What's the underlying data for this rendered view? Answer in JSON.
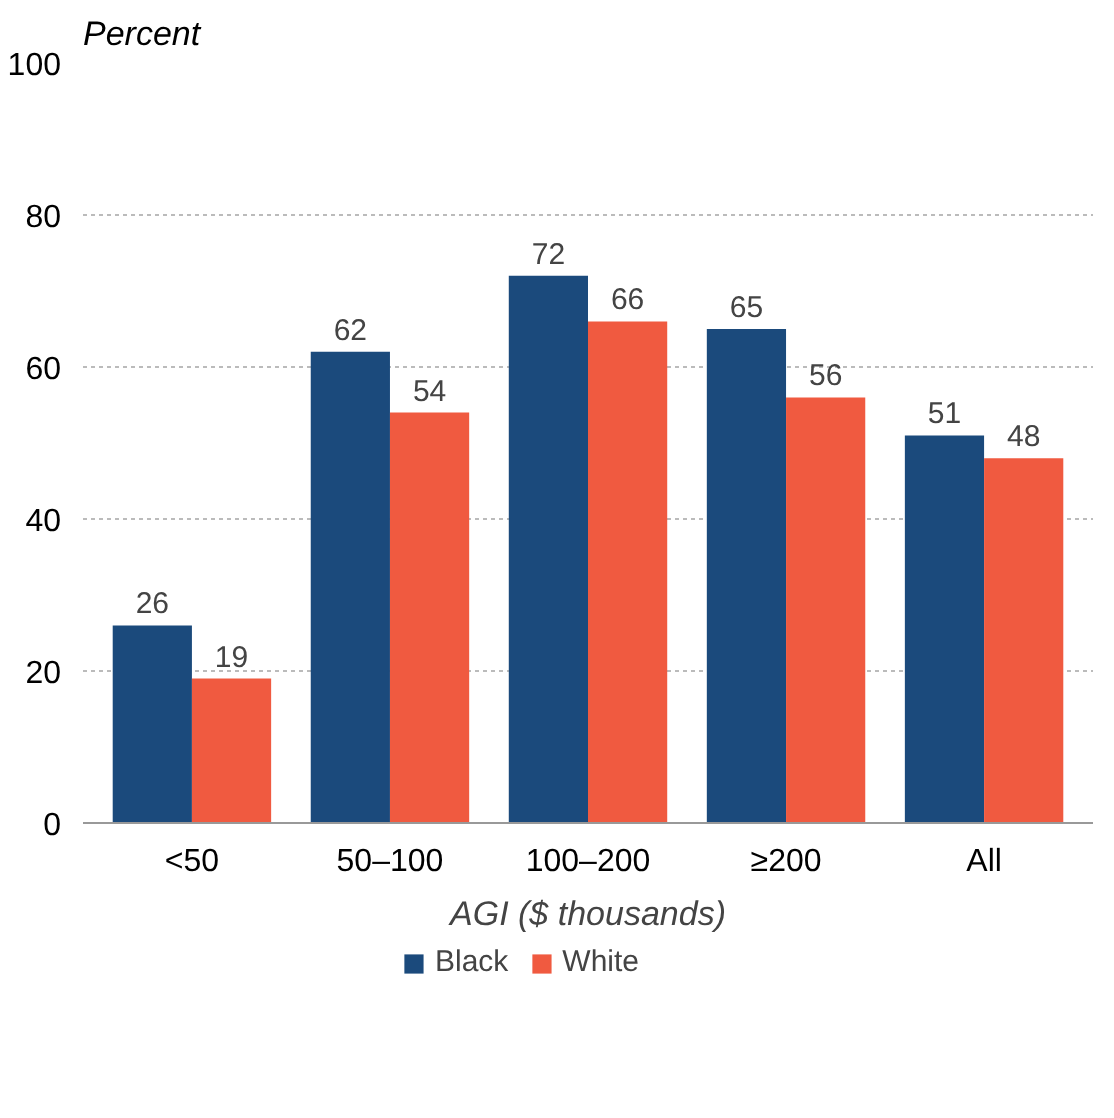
{
  "chart_data": {
    "type": "bar",
    "ylabel": "Percent",
    "xlabel": "AGI ($ thousands)",
    "categories": [
      "<50",
      "50–100",
      "100–200",
      "≥200",
      "All"
    ],
    "series": [
      {
        "name": "Black",
        "color": "#1b4a7c",
        "values": [
          26,
          62,
          72,
          65,
          51
        ]
      },
      {
        "name": "White",
        "color": "#f05a40",
        "values": [
          19,
          54,
          66,
          56,
          48
        ]
      }
    ],
    "ylim": [
      0,
      100
    ],
    "yticks": [
      0,
      20,
      40,
      60,
      80,
      100
    ],
    "grid": "y",
    "legend": "bottom",
    "data_labels": true
  }
}
